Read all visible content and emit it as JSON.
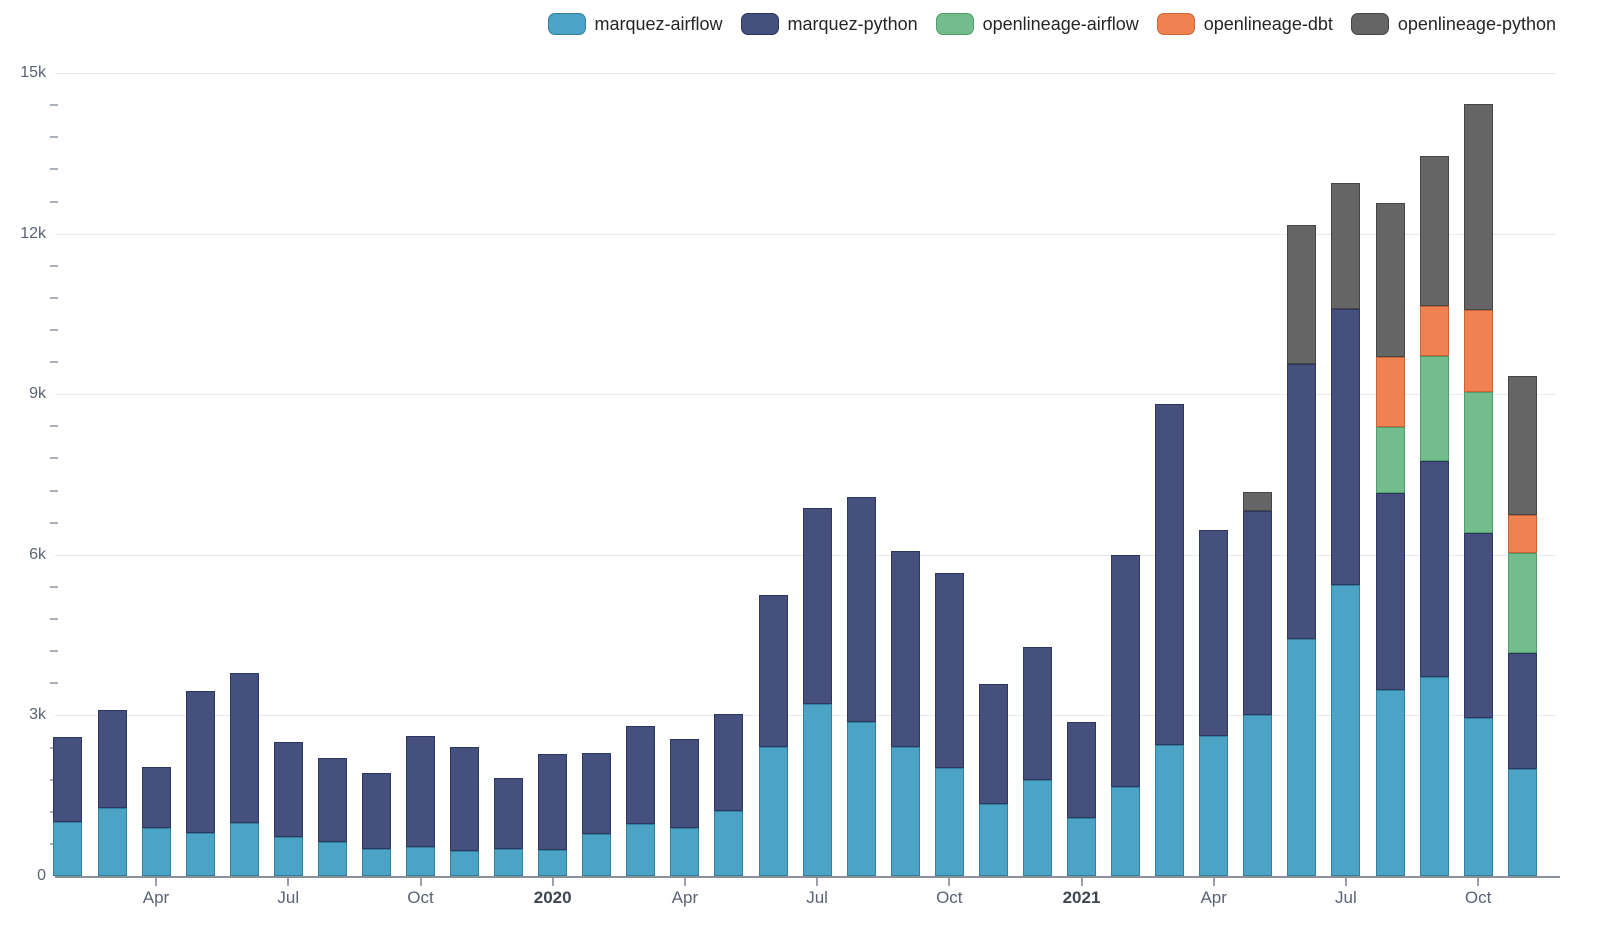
{
  "chart_data": {
    "type": "bar",
    "stacked": true,
    "title": "",
    "xlabel": "",
    "ylabel": "",
    "grid": true,
    "legend_position": "top-right",
    "x": [
      "2019-02",
      "2019-03",
      "2019-04",
      "2019-05",
      "2019-06",
      "2019-07",
      "2019-08",
      "2019-09",
      "2019-10",
      "2019-11",
      "2019-12",
      "2020-01",
      "2020-02",
      "2020-03",
      "2020-04",
      "2020-05",
      "2020-06",
      "2020-07",
      "2020-08",
      "2020-09",
      "2020-10",
      "2020-11",
      "2020-12",
      "2021-01",
      "2021-02",
      "2021-03",
      "2021-04",
      "2021-05",
      "2021-06",
      "2021-07",
      "2021-08",
      "2021-09",
      "2021-10",
      "2021-11"
    ],
    "series": [
      {
        "name": "marquez-airflow",
        "color": "#4ba4c6",
        "border_color": "#34809f",
        "values": [
          1015,
          1275,
          905,
          810,
          985,
          725,
          640,
          505,
          550,
          465,
          500,
          485,
          780,
          980,
          890,
          1215,
          2405,
          3210,
          2885,
          2415,
          2020,
          1345,
          1790,
          1090,
          1660,
          2450,
          2620,
          3010,
          4430,
          5440,
          3475,
          3725,
          2945,
          1995
        ]
      },
      {
        "name": "marquez-python",
        "color": "#46507e",
        "border_color": "#2e3760",
        "values": [
          1585,
          1825,
          1130,
          2655,
          2815,
          1770,
          1560,
          1415,
          2070,
          1940,
          1340,
          1800,
          1525,
          1815,
          1665,
          1815,
          2845,
          3675,
          4205,
          3665,
          3640,
          2245,
          2485,
          1780,
          4330,
          6365,
          3835,
          3815,
          5140,
          5160,
          3675,
          4030,
          3470,
          2170
        ]
      },
      {
        "name": "openlineage-airflow",
        "color": "#73bd8d",
        "border_color": "#529d6e",
        "values": [
          0,
          0,
          0,
          0,
          0,
          0,
          0,
          0,
          0,
          0,
          0,
          0,
          0,
          0,
          0,
          0,
          0,
          0,
          0,
          0,
          0,
          0,
          0,
          0,
          0,
          0,
          0,
          0,
          0,
          0,
          1245,
          1965,
          2625,
          1870
        ]
      },
      {
        "name": "openlineage-dbt",
        "color": "#ef8250",
        "border_color": "#c96439",
        "values": [
          0,
          0,
          0,
          0,
          0,
          0,
          0,
          0,
          0,
          0,
          0,
          0,
          0,
          0,
          0,
          0,
          0,
          0,
          0,
          0,
          0,
          0,
          0,
          0,
          0,
          0,
          0,
          0,
          0,
          0,
          1310,
          935,
          1540,
          715
        ]
      },
      {
        "name": "openlineage-python",
        "color": "#656565",
        "border_color": "#454545",
        "values": [
          0,
          0,
          0,
          0,
          0,
          0,
          0,
          0,
          0,
          0,
          0,
          0,
          0,
          0,
          0,
          0,
          0,
          0,
          0,
          0,
          0,
          0,
          0,
          0,
          0,
          0,
          0,
          340,
          2600,
          2345,
          2865,
          2795,
          3845,
          2585
        ]
      }
    ],
    "yaxis": {
      "min": 0,
      "max": 15000,
      "major_step": 3000,
      "minor_step": 600,
      "tick_labels": [
        "0",
        "3k",
        "6k",
        "9k",
        "12k",
        "15k"
      ]
    },
    "xticks": [
      {
        "index": 2,
        "label": "Apr",
        "bold": false
      },
      {
        "index": 5,
        "label": "Jul",
        "bold": false
      },
      {
        "index": 8,
        "label": "Oct",
        "bold": false
      },
      {
        "index": 11,
        "label": "2020",
        "bold": true
      },
      {
        "index": 14,
        "label": "Apr",
        "bold": false
      },
      {
        "index": 17,
        "label": "Jul",
        "bold": false
      },
      {
        "index": 20,
        "label": "Oct",
        "bold": false
      },
      {
        "index": 23,
        "label": "2021",
        "bold": true
      },
      {
        "index": 26,
        "label": "Apr",
        "bold": false
      },
      {
        "index": 29,
        "label": "Jul",
        "bold": false
      },
      {
        "index": 32,
        "label": "Oct",
        "bold": false
      }
    ]
  }
}
